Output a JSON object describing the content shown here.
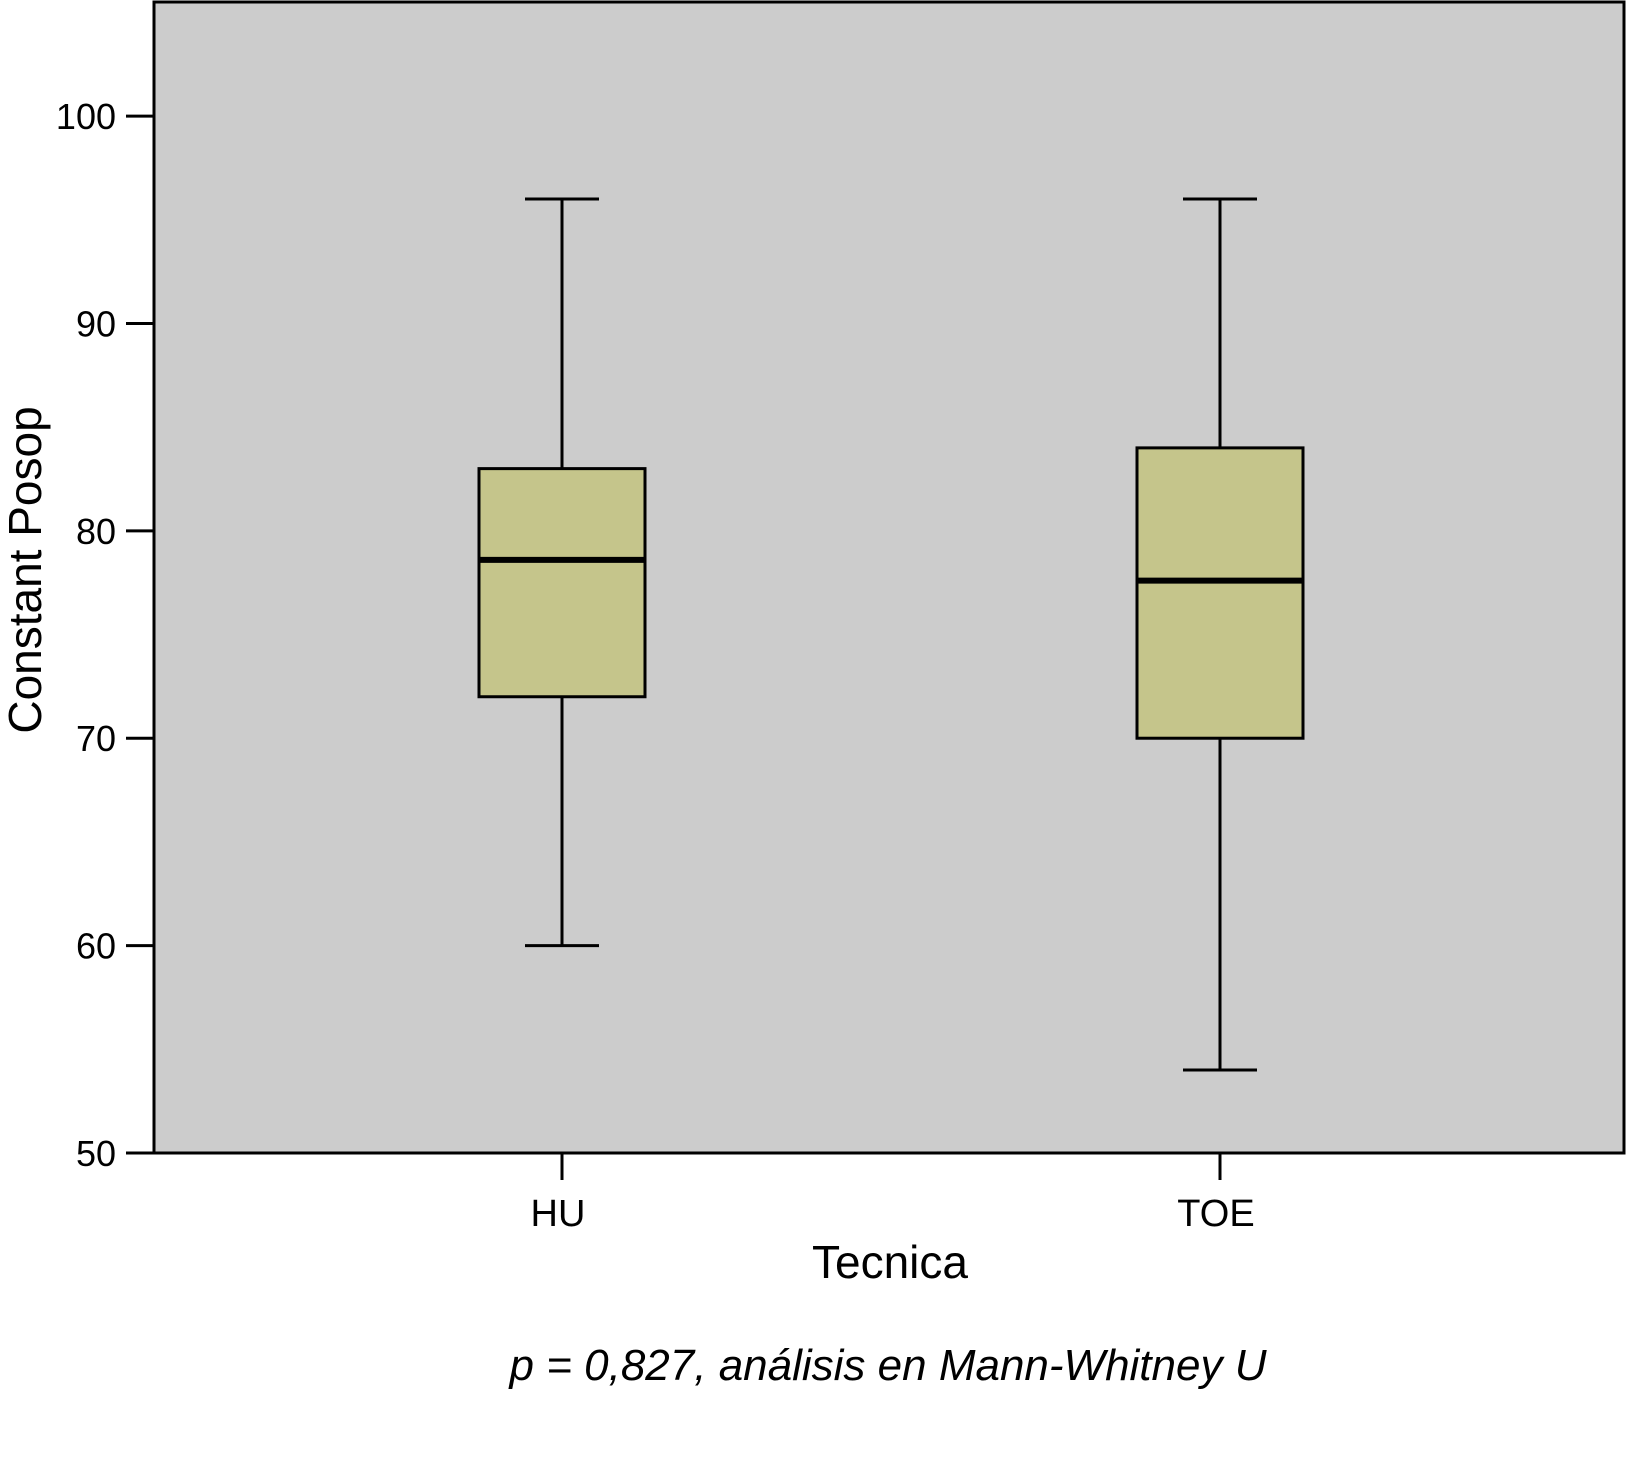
{
  "chart_data": {
    "type": "box",
    "xlabel": "Tecnica",
    "ylabel": "Constant Posop",
    "ylim": [
      50,
      105.5
    ],
    "yticks": [
      50,
      60,
      70,
      80,
      90,
      100
    ],
    "categories": [
      "HU",
      "TOE"
    ],
    "boxes": [
      {
        "category": "HU",
        "min": 60,
        "q1": 72,
        "median": 78.6,
        "q3": 83,
        "max": 96
      },
      {
        "category": "TOE",
        "min": 54,
        "q1": 70,
        "median": 77.6,
        "q3": 84,
        "max": 96
      }
    ],
    "annotation": "p = 0,827, análisis en Mann-Whitney U",
    "grid": false,
    "legend": "none"
  },
  "colors": {
    "plot_background": "#cccccc",
    "box_fill": "#c5c58b",
    "line": "#000000",
    "page_background": "#ffffff"
  }
}
